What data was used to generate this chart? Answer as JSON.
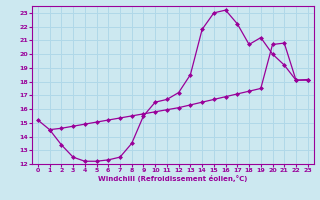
{
  "curve1_x": [
    0,
    1,
    2,
    3,
    4,
    5,
    6,
    7,
    8,
    9,
    10,
    11,
    12,
    13,
    14,
    15,
    16,
    17,
    18,
    19,
    20,
    21,
    22,
    23
  ],
  "curve1_y": [
    15.2,
    14.5,
    13.4,
    12.5,
    12.2,
    12.2,
    12.3,
    12.5,
    13.5,
    15.5,
    16.5,
    16.7,
    17.2,
    18.5,
    21.8,
    23.0,
    23.2,
    22.2,
    20.7,
    21.2,
    20.0,
    19.2,
    18.1,
    18.1
  ],
  "curve2_x": [
    1,
    2,
    3,
    4,
    5,
    6,
    7,
    8,
    9,
    10,
    11,
    12,
    13,
    14,
    15,
    16,
    17,
    18,
    19,
    20,
    21,
    22,
    23
  ],
  "curve2_y": [
    14.5,
    14.6,
    14.75,
    14.9,
    15.05,
    15.2,
    15.35,
    15.5,
    15.65,
    15.8,
    15.95,
    16.1,
    16.3,
    16.5,
    16.7,
    16.9,
    17.1,
    17.3,
    17.5,
    20.7,
    20.8,
    18.1,
    18.15
  ],
  "line_color": "#990099",
  "bg_color": "#cce8f0",
  "grid_color": "#b0d8e8",
  "xlabel": "Windchill (Refroidissement éolien,°C)",
  "xlim": [
    -0.5,
    23.5
  ],
  "ylim": [
    12,
    23.5
  ],
  "xticks": [
    0,
    1,
    2,
    3,
    4,
    5,
    6,
    7,
    8,
    9,
    10,
    11,
    12,
    13,
    14,
    15,
    16,
    17,
    18,
    19,
    20,
    21,
    22,
    23
  ],
  "yticks": [
    12,
    13,
    14,
    15,
    16,
    17,
    18,
    19,
    20,
    21,
    22,
    23
  ]
}
